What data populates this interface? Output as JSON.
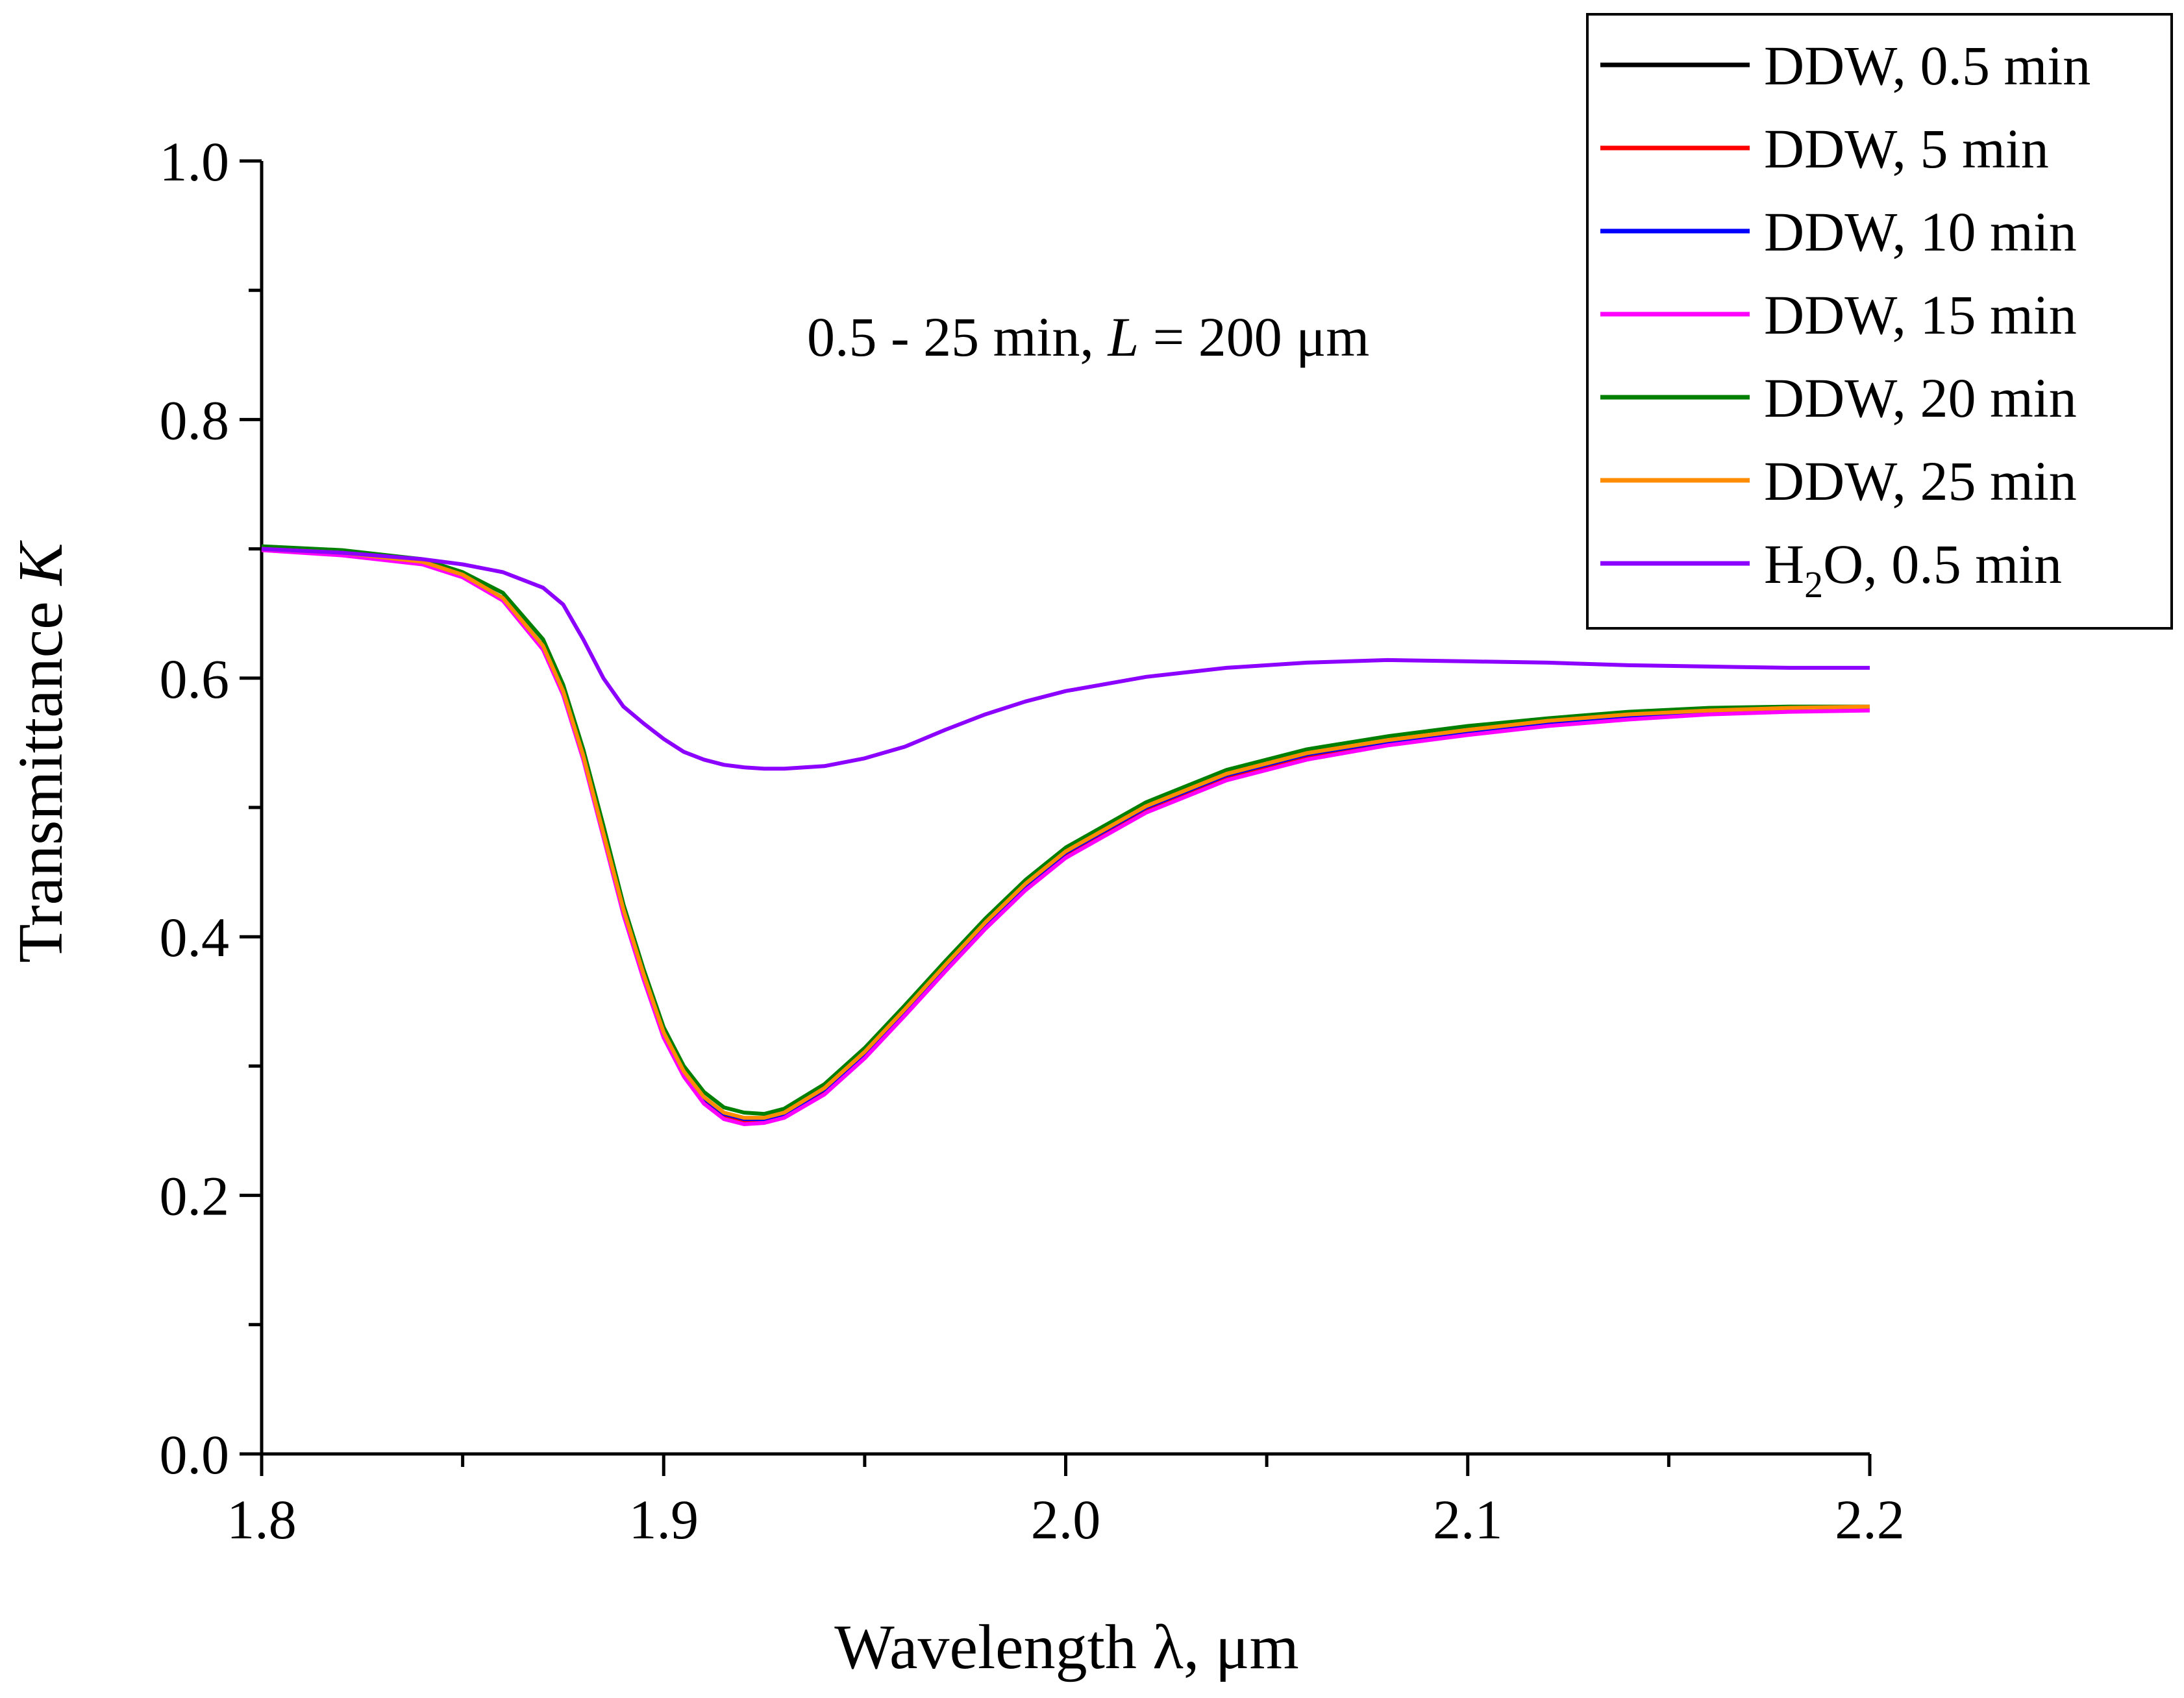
{
  "chart_data": {
    "type": "line",
    "title": "",
    "xlabel": "Wavelength λ, μm",
    "ylabel_main": "Transmittance ",
    "ylabel_italic": "K",
    "xlim": [
      1.8,
      2.2
    ],
    "ylim": [
      0.0,
      1.0
    ],
    "x_ticks": [
      {
        "value": 1.8,
        "label": "1.8"
      },
      {
        "value": 1.9,
        "label": "1.9"
      },
      {
        "value": 2.0,
        "label": "2.0"
      },
      {
        "value": 2.1,
        "label": "2.1"
      },
      {
        "value": 2.2,
        "label": "2.2"
      }
    ],
    "y_ticks": [
      {
        "value": 0.0,
        "label": "0.0"
      },
      {
        "value": 0.2,
        "label": "0.2"
      },
      {
        "value": 0.4,
        "label": "0.4"
      },
      {
        "value": 0.6,
        "label": "0.6"
      },
      {
        "value": 0.8,
        "label": "0.8"
      },
      {
        "value": 1.0,
        "label": "1.0"
      }
    ],
    "annotation": {
      "prefix": "0.5 - 25 min, ",
      "italic": "L",
      "suffix": " = 200 μm"
    },
    "legend_position": "top-right",
    "x": [
      1.8,
      1.82,
      1.84,
      1.85,
      1.86,
      1.87,
      1.875,
      1.88,
      1.885,
      1.89,
      1.895,
      1.9,
      1.905,
      1.91,
      1.915,
      1.92,
      1.925,
      1.93,
      1.94,
      1.95,
      1.96,
      1.97,
      1.98,
      1.99,
      2.0,
      2.02,
      2.04,
      2.06,
      2.08,
      2.1,
      2.12,
      2.14,
      2.16,
      2.18,
      2.2
    ],
    "series": [
      {
        "name": "DDW, 0.5 min",
        "color": "#000000",
        "values": [
          0.7,
          0.697,
          0.69,
          0.68,
          0.662,
          0.625,
          0.59,
          0.54,
          0.48,
          0.42,
          0.37,
          0.325,
          0.295,
          0.275,
          0.263,
          0.259,
          0.259,
          0.263,
          0.282,
          0.31,
          0.343,
          0.377,
          0.41,
          0.44,
          0.465,
          0.5,
          0.525,
          0.541,
          0.551,
          0.559,
          0.566,
          0.571,
          0.574,
          0.576,
          0.577
        ]
      },
      {
        "name": "DDW, 5 min",
        "color": "#ff0000",
        "values": [
          0.7,
          0.696,
          0.689,
          0.679,
          0.661,
          0.624,
          0.589,
          0.539,
          0.479,
          0.419,
          0.369,
          0.324,
          0.294,
          0.274,
          0.262,
          0.258,
          0.258,
          0.262,
          0.281,
          0.309,
          0.342,
          0.376,
          0.409,
          0.439,
          0.464,
          0.499,
          0.524,
          0.54,
          0.55,
          0.558,
          0.565,
          0.57,
          0.573,
          0.575,
          0.576
        ]
      },
      {
        "name": "DDW, 10 min",
        "color": "#0000ff",
        "values": [
          0.7,
          0.697,
          0.69,
          0.68,
          0.662,
          0.625,
          0.59,
          0.54,
          0.48,
          0.42,
          0.37,
          0.325,
          0.295,
          0.275,
          0.263,
          0.259,
          0.259,
          0.263,
          0.282,
          0.31,
          0.343,
          0.377,
          0.41,
          0.44,
          0.465,
          0.5,
          0.525,
          0.541,
          0.551,
          0.559,
          0.566,
          0.571,
          0.574,
          0.576,
          0.577
        ]
      },
      {
        "name": "DDW, 15 min",
        "color": "#ff00ff",
        "values": [
          0.699,
          0.695,
          0.688,
          0.678,
          0.66,
          0.622,
          0.587,
          0.537,
          0.477,
          0.417,
          0.367,
          0.322,
          0.292,
          0.271,
          0.259,
          0.255,
          0.256,
          0.26,
          0.278,
          0.306,
          0.339,
          0.373,
          0.406,
          0.436,
          0.461,
          0.496,
          0.521,
          0.537,
          0.548,
          0.556,
          0.563,
          0.568,
          0.572,
          0.574,
          0.575
        ]
      },
      {
        "name": "DDW, 20 min",
        "color": "#007f00",
        "values": [
          0.702,
          0.699,
          0.692,
          0.682,
          0.666,
          0.63,
          0.595,
          0.545,
          0.486,
          0.425,
          0.375,
          0.33,
          0.3,
          0.28,
          0.268,
          0.264,
          0.263,
          0.267,
          0.286,
          0.314,
          0.347,
          0.381,
          0.414,
          0.444,
          0.469,
          0.504,
          0.529,
          0.545,
          0.555,
          0.563,
          0.569,
          0.574,
          0.577,
          0.578,
          0.578
        ]
      },
      {
        "name": "DDW, 25 min",
        "color": "#ff8c00",
        "values": [
          0.7,
          0.697,
          0.69,
          0.68,
          0.662,
          0.625,
          0.59,
          0.54,
          0.48,
          0.421,
          0.371,
          0.326,
          0.296,
          0.276,
          0.264,
          0.26,
          0.26,
          0.264,
          0.283,
          0.311,
          0.344,
          0.378,
          0.411,
          0.441,
          0.466,
          0.501,
          0.526,
          0.542,
          0.552,
          0.56,
          0.567,
          0.572,
          0.575,
          0.577,
          0.578
        ]
      },
      {
        "name": "H2O, 0.5 min",
        "label_main": "H",
        "label_sub": "2",
        "label_rest": "O, 0.5 min",
        "color": "#8b00ff",
        "values": [
          0.7,
          0.697,
          0.692,
          0.688,
          0.682,
          0.67,
          0.657,
          0.63,
          0.6,
          0.578,
          0.565,
          0.553,
          0.543,
          0.537,
          0.533,
          0.531,
          0.53,
          0.53,
          0.532,
          0.538,
          0.547,
          0.56,
          0.572,
          0.582,
          0.59,
          0.601,
          0.608,
          0.612,
          0.614,
          0.613,
          0.612,
          0.61,
          0.609,
          0.608,
          0.608
        ]
      }
    ]
  }
}
